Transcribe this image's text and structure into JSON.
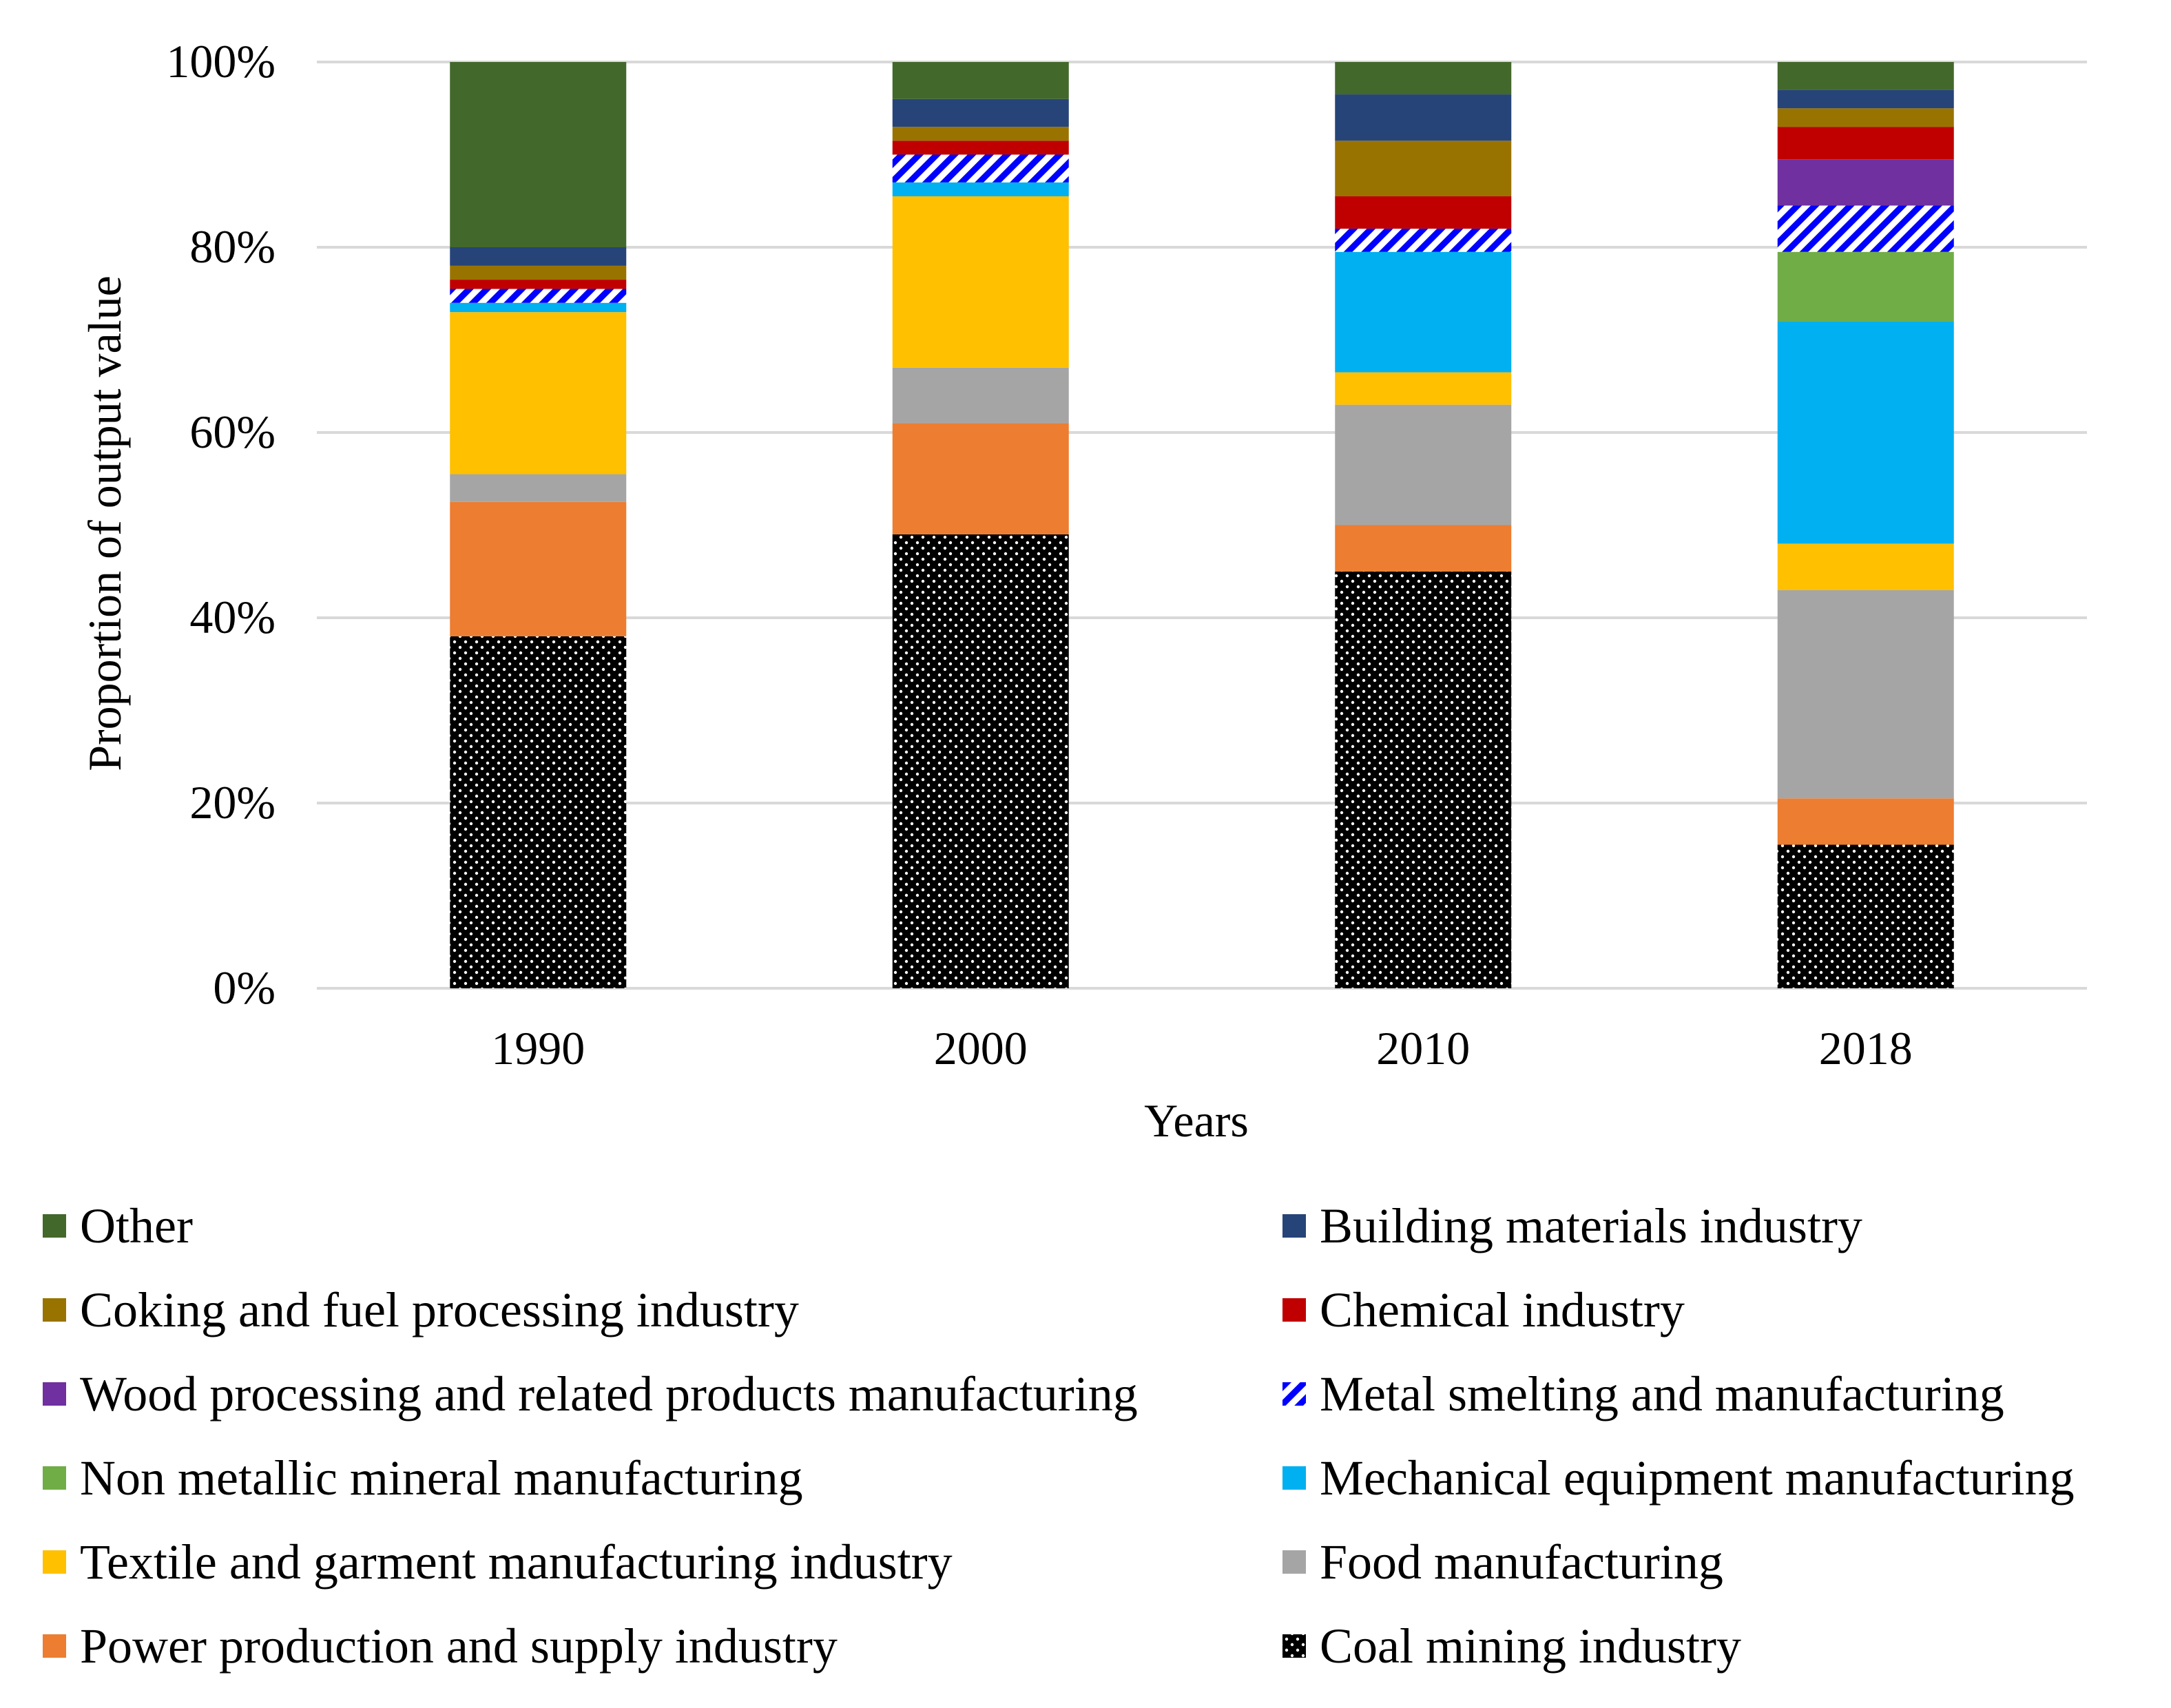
{
  "chart_data": {
    "type": "bar",
    "stacked": true,
    "title": "",
    "xlabel": "Years",
    "ylabel": "Proportion of output value",
    "ylim": [
      0,
      100
    ],
    "y_ticks": [
      0,
      20,
      40,
      60,
      80,
      100
    ],
    "y_tick_labels": [
      "0%",
      "20%",
      "40%",
      "60%",
      "80%",
      "100%"
    ],
    "grid": true,
    "legend_position": "bottom",
    "categories": [
      "1990",
      "2000",
      "2010",
      "2018"
    ],
    "series": [
      {
        "name": "Coal mining industry",
        "key": "coal",
        "color": "#000000",
        "pattern": "dots",
        "values": [
          38.0,
          49.0,
          45.0,
          15.5
        ]
      },
      {
        "name": "Power production and supply industry",
        "key": "power",
        "color": "#ED7D31",
        "values": [
          14.5,
          12.0,
          5.0,
          5.0
        ]
      },
      {
        "name": "Food manufacturing",
        "key": "food",
        "color": "#A5A5A5",
        "values": [
          3.0,
          6.0,
          13.0,
          22.5
        ]
      },
      {
        "name": "Textile and garment manufacturing industry",
        "key": "textile",
        "color": "#FFC000",
        "values": [
          17.5,
          18.5,
          3.5,
          5.0
        ]
      },
      {
        "name": "Mechanical equipment manufacturing",
        "key": "mech",
        "color": "#00B0F0",
        "values": [
          1.0,
          1.5,
          13.0,
          24.0
        ]
      },
      {
        "name": "Non metallic mineral manufacturing",
        "key": "nonmetal",
        "color": "#70AD47",
        "values": [
          0.0,
          0.0,
          0.0,
          7.5
        ]
      },
      {
        "name": "Metal smelting and manufacturing",
        "key": "metal",
        "color": "#0000FF",
        "pattern": "stripes",
        "values": [
          1.5,
          3.0,
          2.5,
          5.0
        ]
      },
      {
        "name": "Wood processing and related products manufacturing",
        "key": "wood",
        "color": "#7030A0",
        "values": [
          0.0,
          0.0,
          0.0,
          5.0
        ]
      },
      {
        "name": "Chemical industry",
        "key": "chem",
        "color": "#C00000",
        "values": [
          1.0,
          1.5,
          3.5,
          3.5
        ]
      },
      {
        "name": "Coking and fuel processing industry",
        "key": "coking",
        "color": "#997300",
        "values": [
          1.5,
          1.5,
          6.0,
          2.0
        ]
      },
      {
        "name": "Building materials industry",
        "key": "building",
        "color": "#264478",
        "values": [
          2.0,
          3.0,
          5.0,
          2.0
        ]
      },
      {
        "name": "Other",
        "key": "other",
        "color": "#43682B",
        "values": [
          20.0,
          4.0,
          3.5,
          3.0
        ]
      }
    ],
    "legend_order": [
      "Other",
      "Building materials industry",
      "Coking and fuel processing industry",
      "Chemical industry",
      "Wood processing and related products manufacturing",
      "Metal smelting and manufacturing",
      "Non metallic mineral manufacturing",
      "Mechanical equipment manufacturing",
      "Textile and garment manufacturing industry",
      "Food manufacturing",
      "Power production and supply industry",
      "Coal mining industry"
    ]
  }
}
